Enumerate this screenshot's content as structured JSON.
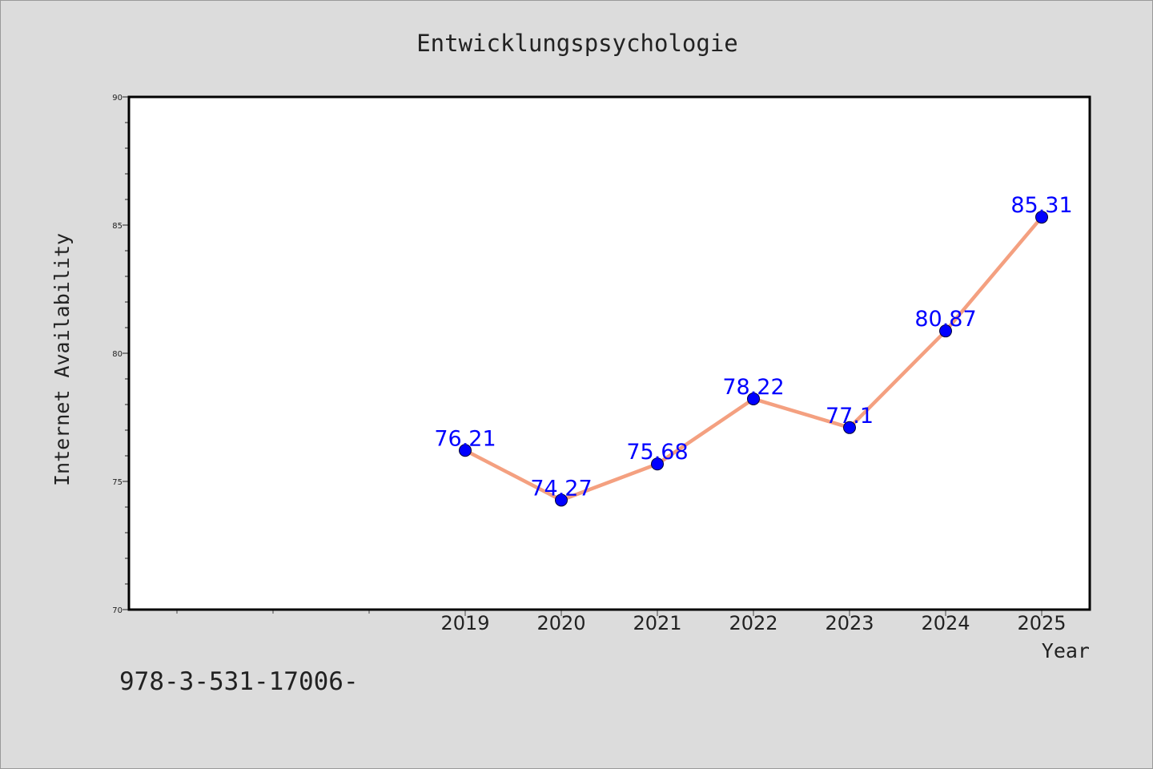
{
  "chart_data": {
    "type": "line",
    "title": "Entwicklungspsychologie",
    "xlabel": "Year",
    "ylabel": "Internet Availability",
    "categories": [
      "2019",
      "2020",
      "2021",
      "2022",
      "2023",
      "2024",
      "2025"
    ],
    "series": [
      {
        "values": [
          76.21,
          74.27,
          75.68,
          78.22,
          77.1,
          80.87,
          85.31
        ],
        "data_labels": [
          "76.21",
          "74.27",
          "75.68",
          "78.22",
          "77.1",
          "80.87",
          "85.31"
        ]
      }
    ],
    "ylim": [
      70,
      90
    ],
    "yticks": [
      70,
      75,
      80,
      85,
      90
    ],
    "grid": false,
    "legend": "none",
    "colors": {
      "line": "#f4a080",
      "marker": "#0000ff",
      "data_label": "#0000ff",
      "background": "#dcdcdc",
      "plot_background": "#ffffff"
    }
  },
  "footer": {
    "text": "978-3-531-17006-"
  }
}
